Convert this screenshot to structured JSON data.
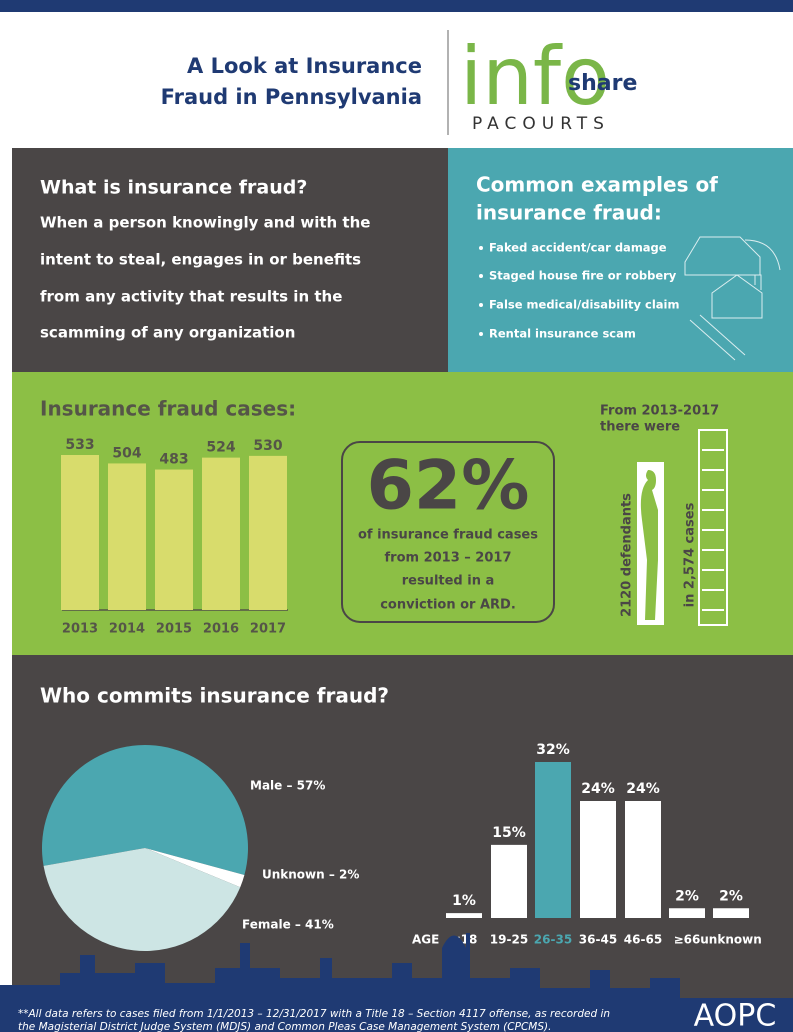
{
  "header": {
    "title_lines": [
      "A Look at Insurance",
      "Fraud in Pennsylvania"
    ],
    "logo_info": "info",
    "logo_share": "share",
    "logo_sub": "PACOURTS"
  },
  "definition": {
    "heading": "What is insurance fraud?",
    "lines": [
      "When a person knowingly and with the",
      "intent to steal, engages in or benefits",
      "from any activity that results in the",
      "scamming of any organization"
    ]
  },
  "examples": {
    "heading_lines": [
      "Common examples of",
      "insurance fraud:"
    ],
    "items": [
      "Faked accident/car damage",
      "Staged house fire or robbery",
      "False medical/disability claim",
      "Rental insurance scam"
    ]
  },
  "stat": {
    "value": "62%",
    "lines": [
      "of insurance fraud cases",
      "from 2013 – 2017",
      "resulted in a",
      "conviction or ARD."
    ]
  },
  "counts": {
    "heading_lines": [
      "From 2013-2017",
      "there were"
    ],
    "defendants": "2120 defendants",
    "cases": "in 2,574 cases"
  },
  "chart_data": [
    {
      "type": "bar",
      "title": "Insurance fraud cases:",
      "categories": [
        "2013",
        "2014",
        "2015",
        "2016",
        "2017"
      ],
      "values": [
        533,
        504,
        483,
        524,
        530
      ],
      "color": "#d8dc6c"
    },
    {
      "type": "pie",
      "title": "Who commits insurance fraud?",
      "values": [
        57,
        2,
        41
      ],
      "value_labels": [
        "Male – 57%",
        "Unknown – 2%",
        "Female – 41%"
      ],
      "colors": [
        "#4ba7b0",
        "#ffffff",
        "#cde5e4"
      ]
    },
    {
      "type": "bar",
      "x_label": "AGE",
      "categories": [
        "≤18",
        "19-25",
        "26-35",
        "36-45",
        "46-65",
        "≥66",
        "unknown"
      ],
      "values": [
        1,
        15,
        32,
        24,
        24,
        2,
        2
      ],
      "value_labels": [
        "1%",
        "15%",
        "32%",
        "24%",
        "24%",
        "2%",
        "2%"
      ],
      "colors": [
        "#ffffff",
        "#ffffff",
        "#4ba7b0",
        "#ffffff",
        "#ffffff",
        "#ffffff",
        "#ffffff"
      ]
    }
  ],
  "footer": {
    "note_lines": [
      "**All data refers to cases filed from 1/1/2013 – 12/31/2017 with a Title 18 – Section 4117 offense, as recorded in",
      "the Magisterial District Judge System (MDJS) and Common Pleas Case Management System (CPCMS)."
    ],
    "logo": "AOPC"
  }
}
